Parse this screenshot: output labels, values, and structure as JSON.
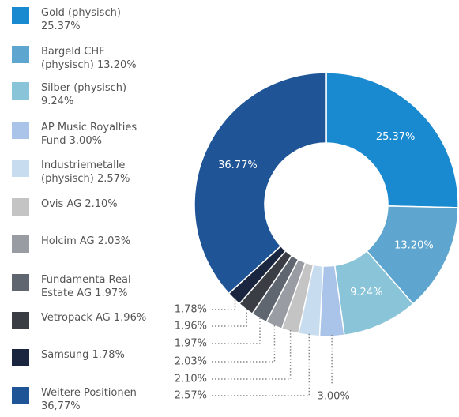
{
  "chart_data": {
    "type": "donut",
    "categories": [
      "Gold (physisch)",
      "Bargeld CHF (physisch)",
      "Silber (physisch)",
      "AP Music Royalties Fund",
      "Industriemetalle (physisch)",
      "Ovis AG",
      "Holcim AG",
      "Fundamenta Real Estate AG",
      "Vetropack AG",
      "Samsung",
      "Weitere Positionen"
    ],
    "values": [
      25.37,
      13.2,
      9.24,
      3.0,
      2.57,
      2.1,
      2.03,
      1.97,
      1.96,
      1.78,
      36.77
    ],
    "value_labels": [
      "25.37%",
      "13.20%",
      "9.24%",
      "3.00%",
      "2.57%",
      "2.10%",
      "2.03%",
      "1.97%",
      "1.96%",
      "1.78%",
      "36.77%"
    ],
    "legend_value_labels": [
      "25.37%",
      "13.20%",
      "9.24%",
      "3.00%",
      "2.57%",
      "2.10%",
      "2.03%",
      "1.97%",
      "1.96%",
      "1.78%",
      "36,77%"
    ],
    "colors": [
      "#1a8ad0",
      "#5ea6cf",
      "#8ac4d8",
      "#a9c4e8",
      "#c7dcef",
      "#c4c4c4",
      "#9a9ca3",
      "#5f6670",
      "#3b3d44",
      "#1a2640",
      "#1f5597"
    ]
  }
}
